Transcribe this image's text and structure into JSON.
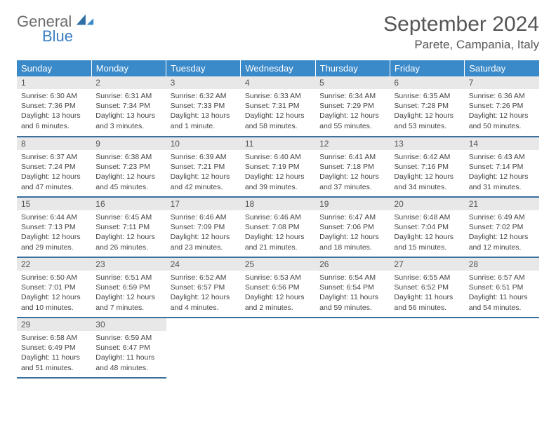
{
  "logo": {
    "general": "General",
    "blue": "Blue"
  },
  "title": "September 2024",
  "location": "Parete, Campania, Italy",
  "headers": [
    "Sunday",
    "Monday",
    "Tuesday",
    "Wednesday",
    "Thursday",
    "Friday",
    "Saturday"
  ],
  "colors": {
    "header_bg": "#3a89c9",
    "header_text": "#ffffff",
    "daynum_bg": "#e8e8e8",
    "cell_border": "#3a6f9e",
    "logo_gray": "#6b6b6b",
    "logo_blue": "#3a7fc4"
  },
  "weeks": [
    [
      {
        "n": "1",
        "sr": "Sunrise: 6:30 AM",
        "ss": "Sunset: 7:36 PM",
        "dl": "Daylight: 13 hours and 6 minutes."
      },
      {
        "n": "2",
        "sr": "Sunrise: 6:31 AM",
        "ss": "Sunset: 7:34 PM",
        "dl": "Daylight: 13 hours and 3 minutes."
      },
      {
        "n": "3",
        "sr": "Sunrise: 6:32 AM",
        "ss": "Sunset: 7:33 PM",
        "dl": "Daylight: 13 hours and 1 minute."
      },
      {
        "n": "4",
        "sr": "Sunrise: 6:33 AM",
        "ss": "Sunset: 7:31 PM",
        "dl": "Daylight: 12 hours and 58 minutes."
      },
      {
        "n": "5",
        "sr": "Sunrise: 6:34 AM",
        "ss": "Sunset: 7:29 PM",
        "dl": "Daylight: 12 hours and 55 minutes."
      },
      {
        "n": "6",
        "sr": "Sunrise: 6:35 AM",
        "ss": "Sunset: 7:28 PM",
        "dl": "Daylight: 12 hours and 53 minutes."
      },
      {
        "n": "7",
        "sr": "Sunrise: 6:36 AM",
        "ss": "Sunset: 7:26 PM",
        "dl": "Daylight: 12 hours and 50 minutes."
      }
    ],
    [
      {
        "n": "8",
        "sr": "Sunrise: 6:37 AM",
        "ss": "Sunset: 7:24 PM",
        "dl": "Daylight: 12 hours and 47 minutes."
      },
      {
        "n": "9",
        "sr": "Sunrise: 6:38 AM",
        "ss": "Sunset: 7:23 PM",
        "dl": "Daylight: 12 hours and 45 minutes."
      },
      {
        "n": "10",
        "sr": "Sunrise: 6:39 AM",
        "ss": "Sunset: 7:21 PM",
        "dl": "Daylight: 12 hours and 42 minutes."
      },
      {
        "n": "11",
        "sr": "Sunrise: 6:40 AM",
        "ss": "Sunset: 7:19 PM",
        "dl": "Daylight: 12 hours and 39 minutes."
      },
      {
        "n": "12",
        "sr": "Sunrise: 6:41 AM",
        "ss": "Sunset: 7:18 PM",
        "dl": "Daylight: 12 hours and 37 minutes."
      },
      {
        "n": "13",
        "sr": "Sunrise: 6:42 AM",
        "ss": "Sunset: 7:16 PM",
        "dl": "Daylight: 12 hours and 34 minutes."
      },
      {
        "n": "14",
        "sr": "Sunrise: 6:43 AM",
        "ss": "Sunset: 7:14 PM",
        "dl": "Daylight: 12 hours and 31 minutes."
      }
    ],
    [
      {
        "n": "15",
        "sr": "Sunrise: 6:44 AM",
        "ss": "Sunset: 7:13 PM",
        "dl": "Daylight: 12 hours and 29 minutes."
      },
      {
        "n": "16",
        "sr": "Sunrise: 6:45 AM",
        "ss": "Sunset: 7:11 PM",
        "dl": "Daylight: 12 hours and 26 minutes."
      },
      {
        "n": "17",
        "sr": "Sunrise: 6:46 AM",
        "ss": "Sunset: 7:09 PM",
        "dl": "Daylight: 12 hours and 23 minutes."
      },
      {
        "n": "18",
        "sr": "Sunrise: 6:46 AM",
        "ss": "Sunset: 7:08 PM",
        "dl": "Daylight: 12 hours and 21 minutes."
      },
      {
        "n": "19",
        "sr": "Sunrise: 6:47 AM",
        "ss": "Sunset: 7:06 PM",
        "dl": "Daylight: 12 hours and 18 minutes."
      },
      {
        "n": "20",
        "sr": "Sunrise: 6:48 AM",
        "ss": "Sunset: 7:04 PM",
        "dl": "Daylight: 12 hours and 15 minutes."
      },
      {
        "n": "21",
        "sr": "Sunrise: 6:49 AM",
        "ss": "Sunset: 7:02 PM",
        "dl": "Daylight: 12 hours and 12 minutes."
      }
    ],
    [
      {
        "n": "22",
        "sr": "Sunrise: 6:50 AM",
        "ss": "Sunset: 7:01 PM",
        "dl": "Daylight: 12 hours and 10 minutes."
      },
      {
        "n": "23",
        "sr": "Sunrise: 6:51 AM",
        "ss": "Sunset: 6:59 PM",
        "dl": "Daylight: 12 hours and 7 minutes."
      },
      {
        "n": "24",
        "sr": "Sunrise: 6:52 AM",
        "ss": "Sunset: 6:57 PM",
        "dl": "Daylight: 12 hours and 4 minutes."
      },
      {
        "n": "25",
        "sr": "Sunrise: 6:53 AM",
        "ss": "Sunset: 6:56 PM",
        "dl": "Daylight: 12 hours and 2 minutes."
      },
      {
        "n": "26",
        "sr": "Sunrise: 6:54 AM",
        "ss": "Sunset: 6:54 PM",
        "dl": "Daylight: 11 hours and 59 minutes."
      },
      {
        "n": "27",
        "sr": "Sunrise: 6:55 AM",
        "ss": "Sunset: 6:52 PM",
        "dl": "Daylight: 11 hours and 56 minutes."
      },
      {
        "n": "28",
        "sr": "Sunrise: 6:57 AM",
        "ss": "Sunset: 6:51 PM",
        "dl": "Daylight: 11 hours and 54 minutes."
      }
    ],
    [
      {
        "n": "29",
        "sr": "Sunrise: 6:58 AM",
        "ss": "Sunset: 6:49 PM",
        "dl": "Daylight: 11 hours and 51 minutes."
      },
      {
        "n": "30",
        "sr": "Sunrise: 6:59 AM",
        "ss": "Sunset: 6:47 PM",
        "dl": "Daylight: 11 hours and 48 minutes."
      },
      null,
      null,
      null,
      null,
      null
    ]
  ]
}
